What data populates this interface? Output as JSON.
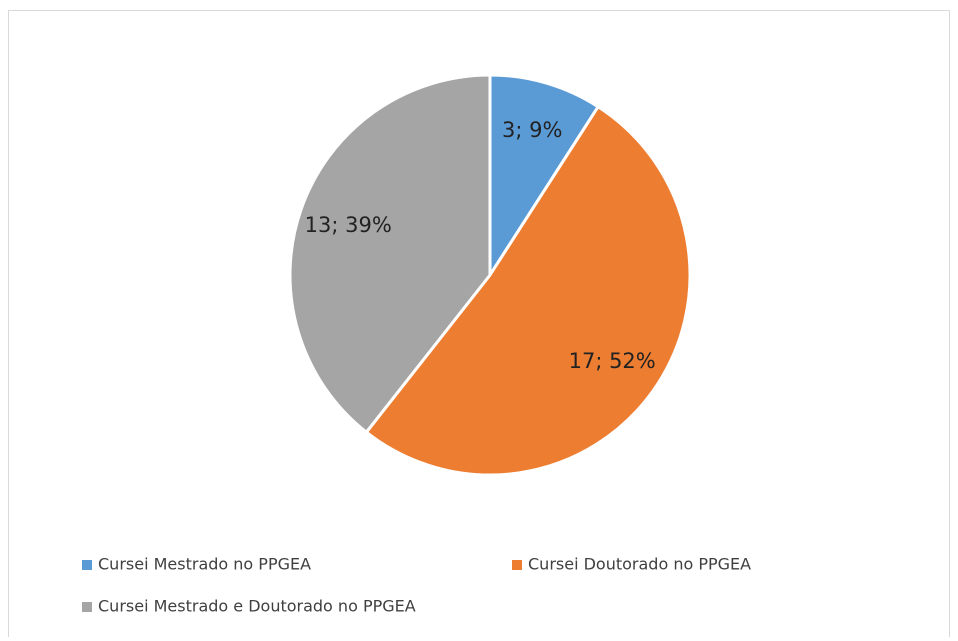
{
  "chart_data": {
    "type": "pie",
    "categories": [
      "Cursei Mestrado no PPGEA",
      "Cursei Doutorado no PPGEA",
      "Cursei Mestrado e Doutorado no PPGEA"
    ],
    "values": [
      3,
      17,
      13
    ],
    "value_labels": [
      "3; 9%",
      "17; 52%",
      "13; 39%"
    ],
    "colors": [
      "#5b9bd5",
      "#ed7d31",
      "#a5a5a5"
    ],
    "legend": "bottom"
  }
}
